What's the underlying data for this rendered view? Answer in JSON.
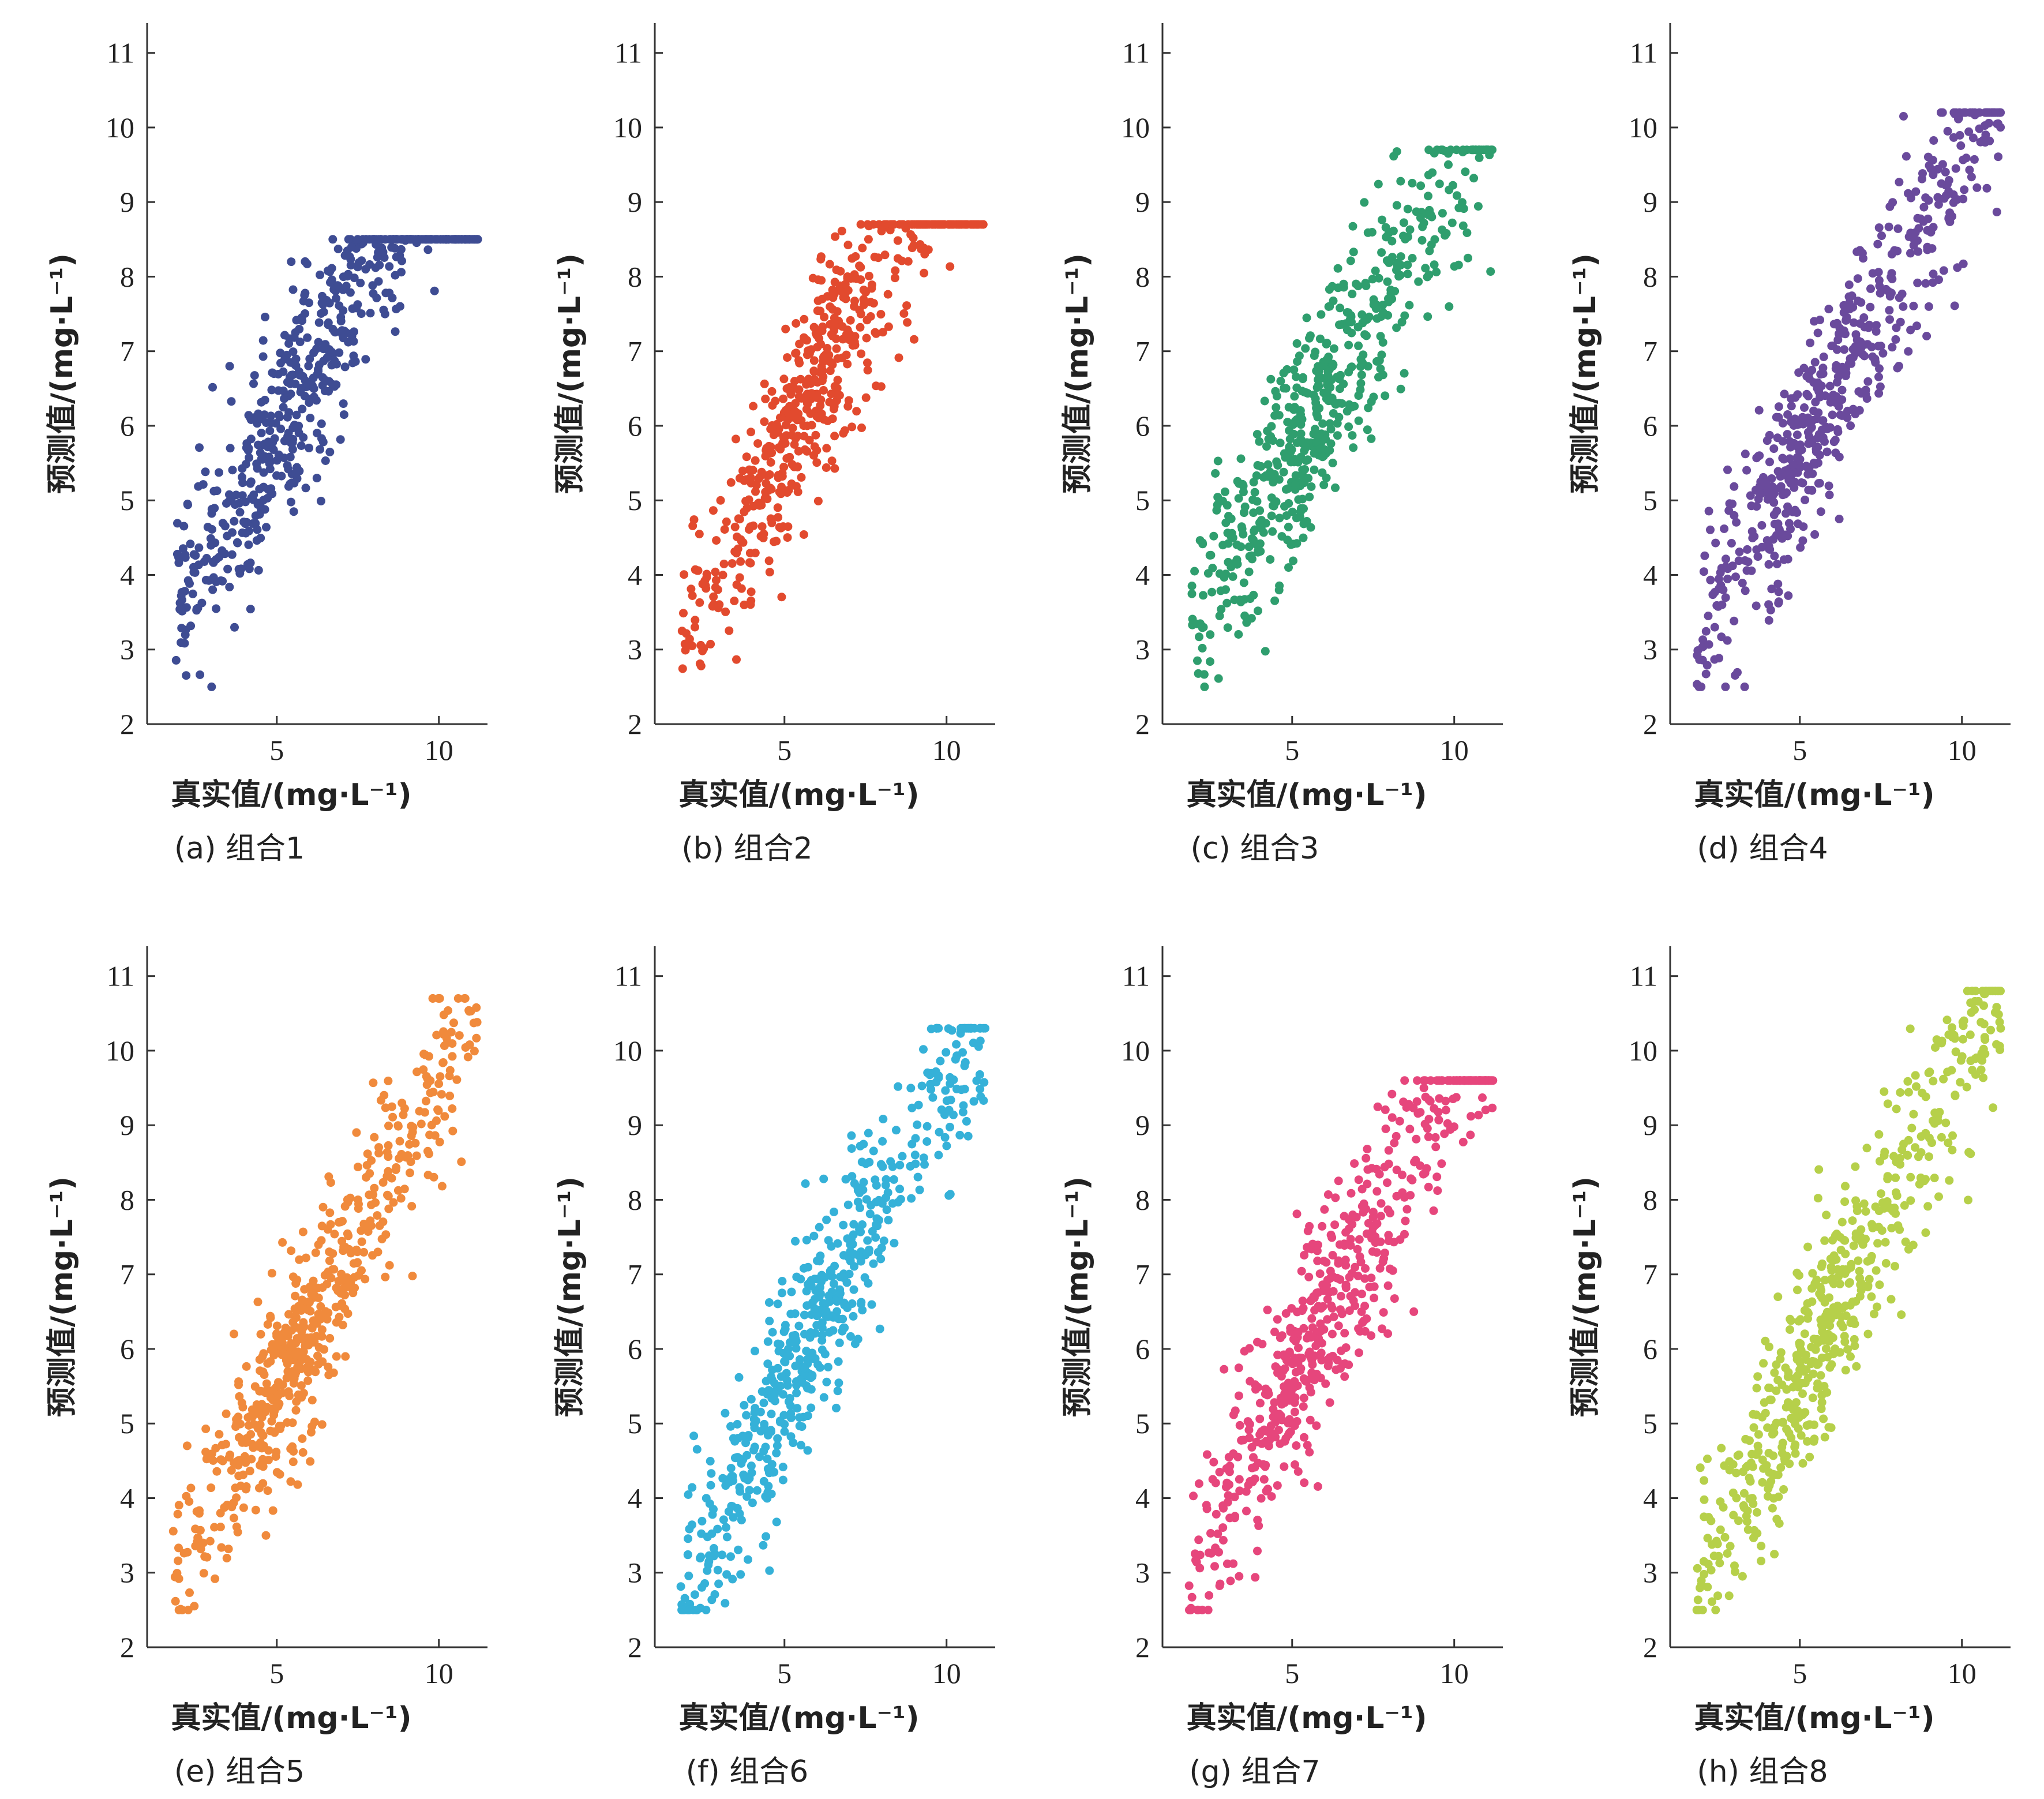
{
  "chart_data": [
    {
      "type": "scatter",
      "panel": "a",
      "caption": "(a) 组合1",
      "color": "#3e4c93",
      "xlabel": "真实值/(mg·L⁻¹)",
      "ylabel": "预测值/(mg·L⁻¹)",
      "xlim": [
        1,
        11.5
      ],
      "ylim": [
        2,
        11.4
      ],
      "xticks": [
        5,
        10
      ],
      "yticks": [
        2,
        3,
        4,
        5,
        6,
        7,
        8,
        9,
        10,
        11
      ],
      "seed": 11,
      "a": 2.0,
      "b": 0.78,
      "noise": 0.7,
      "ycap": 8.5,
      "n": 560
    },
    {
      "type": "scatter",
      "panel": "b",
      "caption": "(b) 组合2",
      "color": "#e24a2e",
      "xlabel": "真实值/(mg·L⁻¹)",
      "ylabel": "预测值/(mg·L⁻¹)",
      "xlim": [
        1,
        11.5
      ],
      "ylim": [
        2,
        11.4
      ],
      "xticks": [
        5,
        10
      ],
      "yticks": [
        2,
        3,
        4,
        5,
        6,
        7,
        8,
        9,
        10,
        11
      ],
      "seed": 23,
      "a": 1.7,
      "b": 0.8,
      "noise": 0.65,
      "ycap": 8.7,
      "n": 560
    },
    {
      "type": "scatter",
      "panel": "c",
      "caption": "(c) 组合3",
      "color": "#2f9e6e",
      "xlabel": "真实值/(mg·L⁻¹)",
      "ylabel": "预测值/(mg·L⁻¹)",
      "xlim": [
        1,
        11.5
      ],
      "ylim": [
        2,
        11.4
      ],
      "xticks": [
        5,
        10
      ],
      "yticks": [
        2,
        3,
        4,
        5,
        6,
        7,
        8,
        9,
        10,
        11
      ],
      "seed": 37,
      "a": 1.9,
      "b": 0.75,
      "noise": 0.7,
      "ycap": 9.7,
      "n": 560
    },
    {
      "type": "scatter",
      "panel": "d",
      "caption": "(d) 组合4",
      "color": "#6a4a9c",
      "xlabel": "真实值/(mg·L⁻¹)",
      "ylabel": "预测值/(mg·L⁻¹)",
      "xlim": [
        1,
        11.5
      ],
      "ylim": [
        2,
        11.4
      ],
      "xticks": [
        5,
        10
      ],
      "yticks": [
        2,
        3,
        4,
        5,
        6,
        7,
        8,
        9,
        10,
        11
      ],
      "seed": 41,
      "a": 1.6,
      "b": 0.8,
      "noise": 0.7,
      "ycap": 10.2,
      "n": 560
    },
    {
      "type": "scatter",
      "panel": "e",
      "caption": "(e) 组合5",
      "color": "#f08a3c",
      "xlabel": "真实值/(mg·L⁻¹)",
      "ylabel": "预测值/(mg·L⁻¹)",
      "xlim": [
        1,
        11.5
      ],
      "ylim": [
        2,
        11.4
      ],
      "xticks": [
        5,
        10
      ],
      "yticks": [
        2,
        3,
        4,
        5,
        6,
        7,
        8,
        9,
        10,
        11
      ],
      "seed": 53,
      "a": 1.4,
      "b": 0.82,
      "noise": 0.65,
      "ycap": 10.7,
      "n": 560
    },
    {
      "type": "scatter",
      "panel": "f",
      "caption": "(f) 组合6",
      "color": "#35b1d8",
      "xlabel": "真实值/(mg·L⁻¹)",
      "ylabel": "预测值/(mg·L⁻¹)",
      "xlim": [
        1,
        11.5
      ],
      "ylim": [
        2,
        11.4
      ],
      "xticks": [
        5,
        10
      ],
      "yticks": [
        2,
        3,
        4,
        5,
        6,
        7,
        8,
        9,
        10,
        11
      ],
      "seed": 67,
      "a": 1.2,
      "b": 0.85,
      "noise": 0.65,
      "ycap": 10.3,
      "n": 560
    },
    {
      "type": "scatter",
      "panel": "g",
      "caption": "(g) 组合7",
      "color": "#e6467c",
      "xlabel": "真实值/(mg·L⁻¹)",
      "ylabel": "预测值/(mg·L⁻¹)",
      "xlim": [
        1,
        11.5
      ],
      "ylim": [
        2,
        11.4
      ],
      "xticks": [
        5,
        10
      ],
      "yticks": [
        2,
        3,
        4,
        5,
        6,
        7,
        8,
        9,
        10,
        11
      ],
      "seed": 79,
      "a": 1.5,
      "b": 0.82,
      "noise": 0.7,
      "ycap": 9.6,
      "n": 560
    },
    {
      "type": "scatter",
      "panel": "h",
      "caption": "(h) 组合8",
      "color": "#b6d04a",
      "xlabel": "真实值/(mg·L⁻¹)",
      "ylabel": "预测值/(mg·L⁻¹)",
      "xlim": [
        1,
        11.5
      ],
      "ylim": [
        2,
        11.4
      ],
      "xticks": [
        5,
        10
      ],
      "yticks": [
        2,
        3,
        4,
        5,
        6,
        7,
        8,
        9,
        10,
        11
      ],
      "seed": 97,
      "a": 1.4,
      "b": 0.84,
      "noise": 0.7,
      "ycap": 10.8,
      "n": 560
    }
  ]
}
